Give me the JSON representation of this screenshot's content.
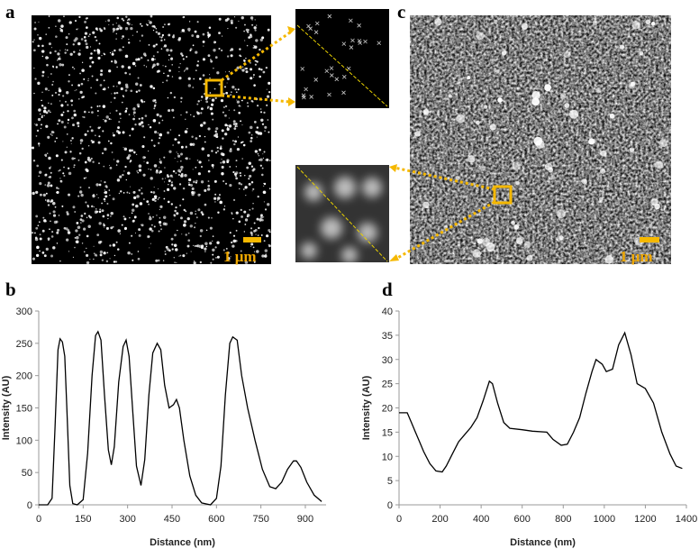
{
  "panel_labels": [
    "a",
    "b",
    "c",
    "d"
  ],
  "scale_bar_labels": [
    "1 μm",
    "1 μm"
  ],
  "chart_data": [
    {
      "type": "line",
      "x_label": "Distance (nm)",
      "y_label": "Intensity (AU)",
      "color": "#000000",
      "xlim": [
        0,
        970
      ],
      "ylim": [
        0,
        300
      ],
      "xticks": [
        0,
        150,
        300,
        450,
        600,
        750,
        900
      ],
      "yticks": [
        0,
        50,
        100,
        150,
        200,
        250,
        300
      ],
      "x": [
        0,
        30,
        45,
        55,
        65,
        72,
        80,
        88,
        95,
        105,
        115,
        130,
        150,
        165,
        180,
        192,
        200,
        210,
        222,
        235,
        245,
        255,
        270,
        285,
        295,
        305,
        318,
        330,
        345,
        358,
        372,
        385,
        400,
        412,
        425,
        440,
        455,
        465,
        475,
        490,
        510,
        530,
        550,
        580,
        600,
        615,
        630,
        645,
        655,
        670,
        685,
        705,
        730,
        755,
        780,
        800,
        820,
        840,
        860,
        870,
        885,
        905,
        930,
        955
      ],
      "values": [
        0,
        0,
        10,
        120,
        240,
        257,
        252,
        230,
        150,
        30,
        2,
        0,
        8,
        80,
        200,
        262,
        268,
        255,
        170,
        85,
        62,
        90,
        190,
        245,
        255,
        230,
        140,
        60,
        30,
        70,
        170,
        235,
        250,
        240,
        185,
        150,
        155,
        163,
        150,
        100,
        45,
        15,
        3,
        0,
        10,
        60,
        170,
        250,
        260,
        255,
        200,
        150,
        100,
        55,
        28,
        25,
        35,
        55,
        68,
        68,
        58,
        35,
        15,
        5
      ]
    },
    {
      "type": "line",
      "x_label": "Distance (nm)",
      "y_label": "Intensity (AU)",
      "color": "#000000",
      "xlim": [
        0,
        1400
      ],
      "ylim": [
        0,
        40
      ],
      "xticks": [
        0,
        200,
        400,
        600,
        800,
        1000,
        1200,
        1400
      ],
      "yticks": [
        0,
        5,
        10,
        15,
        20,
        25,
        30,
        35,
        40
      ],
      "x": [
        0,
        40,
        60,
        80,
        100,
        120,
        150,
        180,
        210,
        230,
        260,
        290,
        320,
        350,
        380,
        410,
        440,
        455,
        480,
        510,
        540,
        600,
        650,
        720,
        750,
        790,
        820,
        850,
        880,
        910,
        940,
        960,
        990,
        1010,
        1040,
        1070,
        1100,
        1130,
        1160,
        1200,
        1240,
        1280,
        1320,
        1350,
        1380
      ],
      "values": [
        19,
        19,
        17,
        15,
        13,
        11,
        8.5,
        7,
        6.8,
        8,
        10.5,
        13,
        14.5,
        16,
        18,
        21.5,
        25.5,
        25,
        21,
        17,
        15.8,
        15.5,
        15.2,
        15,
        13.5,
        12.3,
        12.5,
        15,
        18,
        23,
        27.5,
        30,
        29,
        27.5,
        28,
        33,
        35.5,
        31,
        25,
        24,
        21,
        15,
        10.5,
        8,
        7.5
      ]
    }
  ]
}
